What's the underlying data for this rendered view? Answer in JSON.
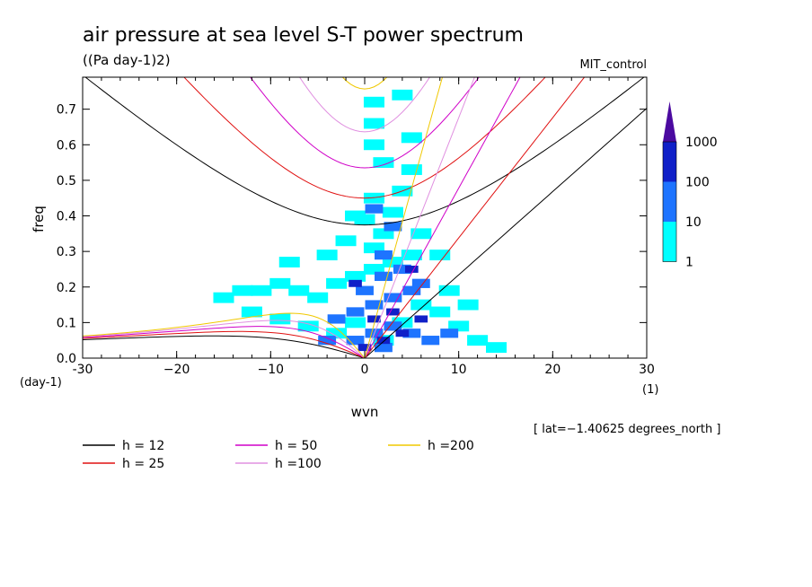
{
  "chart_data": {
    "type": "heatmap",
    "title": "air pressure at sea level S-T power spectrum",
    "units": "((Pa day-1)2)",
    "run_label": "MIT_control",
    "xlabel": "wvn",
    "ylabel": "freq",
    "x_units": "(1)",
    "y_units": "(day-1)",
    "xlim": [
      -30,
      30
    ],
    "ylim": [
      0,
      0.79
    ],
    "x_ticks": [
      -30,
      -20,
      -10,
      0,
      10,
      20,
      30
    ],
    "x_tick_labels": [
      "-30",
      "−20",
      "−10",
      "0",
      "10",
      "20",
      "30"
    ],
    "y_ticks": [
      0,
      0.1,
      0.2,
      0.3,
      0.4,
      0.5,
      0.6,
      0.7
    ],
    "y_tick_labels": [
      "0.0",
      "0.1",
      "0.2",
      "0.3",
      "0.4",
      "0.5",
      "0.6",
      "0.7"
    ],
    "lat_note": "[ lat=−1.40625 degrees_north ]",
    "colorbar": {
      "levels": [
        1,
        10,
        100,
        1000
      ],
      "labels": [
        "1",
        "10",
        "100",
        "1000"
      ],
      "colors": [
        "#00ffff",
        "#1e74ff",
        "#1020c8",
        "#4b0aa0"
      ]
    },
    "shaded_regions": [
      {
        "level": 1,
        "cells": [
          [
            -15,
            0.17
          ],
          [
            -13,
            0.19
          ],
          [
            -11,
            0.19
          ],
          [
            -9,
            0.21
          ],
          [
            -7,
            0.19
          ],
          [
            -5,
            0.17
          ],
          [
            -3,
            0.21
          ],
          [
            -1,
            0.23
          ],
          [
            1,
            0.25
          ],
          [
            3,
            0.27
          ],
          [
            5,
            0.29
          ],
          [
            -12,
            0.13
          ],
          [
            -9,
            0.11
          ],
          [
            -6,
            0.09
          ],
          [
            -3,
            0.07
          ],
          [
            -1,
            0.1
          ],
          [
            2,
            0.05
          ],
          [
            4,
            0.1
          ],
          [
            6,
            0.15
          ],
          [
            8,
            0.13
          ],
          [
            10,
            0.09
          ],
          [
            12,
            0.05
          ],
          [
            14,
            0.03
          ],
          [
            2,
            0.35
          ],
          [
            3,
            0.41
          ],
          [
            4,
            0.47
          ],
          [
            5,
            0.53
          ],
          [
            1,
            0.31
          ],
          [
            0,
            0.39
          ],
          [
            1,
            0.45
          ],
          [
            2,
            0.55
          ],
          [
            1,
            0.6
          ],
          [
            1,
            0.66
          ],
          [
            1,
            0.72
          ],
          [
            5,
            0.62
          ],
          [
            -2,
            0.33
          ],
          [
            6,
            0.35
          ],
          [
            8,
            0.29
          ],
          [
            9,
            0.19
          ],
          [
            11,
            0.15
          ],
          [
            4,
            0.74
          ],
          [
            -8,
            0.27
          ],
          [
            -4,
            0.29
          ],
          [
            -1,
            0.4
          ]
        ]
      },
      {
        "level": 10,
        "cells": [
          [
            -3,
            0.11
          ],
          [
            -1,
            0.13
          ],
          [
            1,
            0.15
          ],
          [
            3,
            0.17
          ],
          [
            5,
            0.19
          ],
          [
            2,
            0.23
          ],
          [
            4,
            0.25
          ],
          [
            6,
            0.21
          ],
          [
            -1,
            0.05
          ],
          [
            1,
            0.07
          ],
          [
            3,
            0.09
          ],
          [
            5,
            0.07
          ],
          [
            7,
            0.05
          ],
          [
            0,
            0.19
          ],
          [
            -4,
            0.05
          ],
          [
            2,
            0.29
          ],
          [
            3,
            0.37
          ],
          [
            1,
            0.42
          ],
          [
            2,
            0.03
          ],
          [
            9,
            0.07
          ]
        ]
      },
      {
        "level": 100,
        "cells": [
          [
            -1,
            0.21
          ],
          [
            1,
            0.11
          ],
          [
            2,
            0.05
          ],
          [
            3,
            0.13
          ],
          [
            4,
            0.07
          ],
          [
            6,
            0.11
          ],
          [
            5,
            0.25
          ],
          [
            0,
            0.03
          ]
        ]
      }
    ],
    "series": [
      {
        "name": "h = 12",
        "color": "#000000",
        "equivalent_depth": 12
      },
      {
        "name": "h = 25",
        "color": "#e01010",
        "equivalent_depth": 25
      },
      {
        "name": "h = 50",
        "color": "#d000c8",
        "equivalent_depth": 50
      },
      {
        "name": "h =100",
        "color": "#e090e0",
        "equivalent_depth": 100
      },
      {
        "name": "h =200",
        "color": "#f0c800",
        "equivalent_depth": 200
      }
    ]
  }
}
